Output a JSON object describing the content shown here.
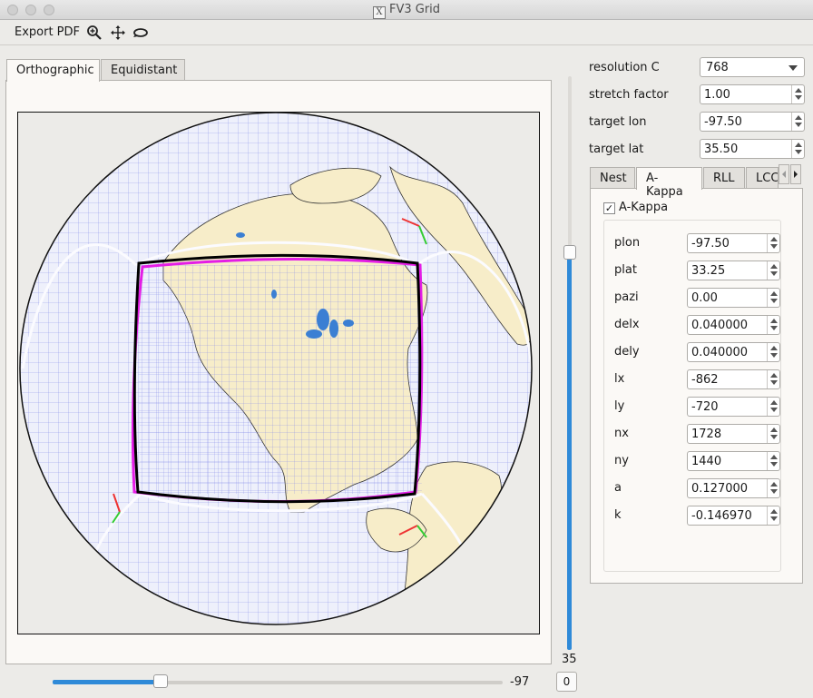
{
  "window": {
    "title": "FV3 Grid"
  },
  "toolbar": {
    "export_label": "Export PDF",
    "icons": [
      "zoom-in-icon",
      "move-icon",
      "rotate-icon"
    ]
  },
  "tabs": [
    {
      "label": "Orthographic",
      "active": true
    },
    {
      "label": "Equidistant",
      "active": false
    }
  ],
  "sliders": {
    "vertical_value": "35",
    "horizontal_value": "-97",
    "reset_label": "0"
  },
  "settings": {
    "resolution": {
      "label": "resolution C",
      "value": "768"
    },
    "stretch": {
      "label": "stretch factor",
      "value": "1.00"
    },
    "target_lon": {
      "label": "target lon",
      "value": "-97.50"
    },
    "target_lat": {
      "label": "target lat",
      "value": "35.50"
    }
  },
  "panel_tabs": [
    {
      "label": "Nest",
      "active": false
    },
    {
      "label": "A-Kappa",
      "active": true
    },
    {
      "label": "RLL",
      "active": false
    },
    {
      "label": "LCC",
      "active": false
    }
  ],
  "akappa": {
    "checkbox_label": "A-Kappa",
    "checked": true,
    "params": [
      {
        "label": "plon",
        "value": "-97.50"
      },
      {
        "label": "plat",
        "value": "33.25"
      },
      {
        "label": "pazi",
        "value": "0.00"
      },
      {
        "label": "delx",
        "value": "0.040000"
      },
      {
        "label": "dely",
        "value": "0.040000"
      },
      {
        "label": "lx",
        "value": "-862"
      },
      {
        "label": "ly",
        "value": "-720"
      },
      {
        "label": "nx",
        "value": "1728"
      },
      {
        "label": "ny",
        "value": "1440"
      },
      {
        "label": "a",
        "value": "0.127000"
      },
      {
        "label": "k",
        "value": "-0.146970"
      }
    ]
  },
  "colors": {
    "grid_line": "#7f85e8",
    "land": "#f7edc9",
    "water": "#3b7fd3",
    "domain_outline": "#000000",
    "regional_outline": "#e41ee6",
    "slider_accent": "#2f8ad8"
  }
}
